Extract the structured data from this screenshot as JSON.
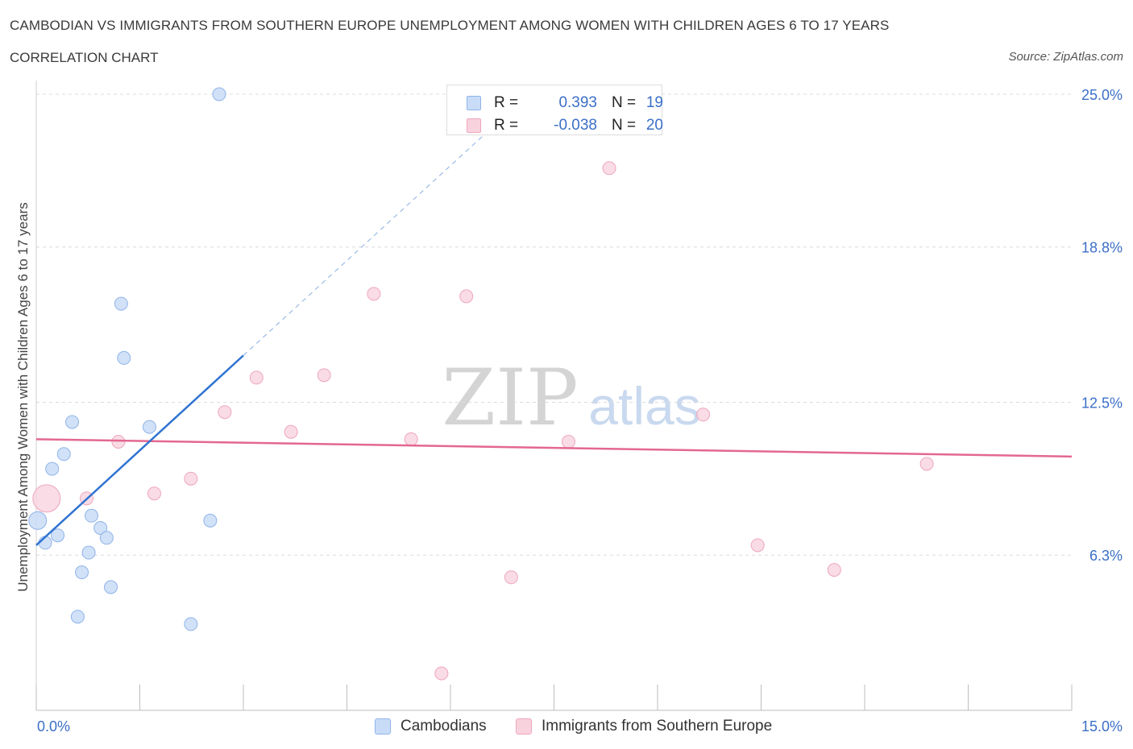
{
  "title": "CAMBODIAN VS IMMIGRANTS FROM SOUTHERN EUROPE UNEMPLOYMENT AMONG WOMEN WITH CHILDREN AGES 6 TO 17 YEARS",
  "subtitle": "CORRELATION CHART",
  "source": "Source: ZipAtlas.com",
  "watermark": {
    "zip": "ZIP",
    "atlas": "atlas"
  },
  "colors": {
    "blue_fill": "#c9dcf7",
    "blue_stroke": "#8fb4e8",
    "blue_line": "#2f73d1",
    "pink_fill": "#f8d3de",
    "pink_stroke": "#eea6bd",
    "pink_line": "#e3688f",
    "tick_label": "#3b6fc7",
    "grid": "#dcdcdc"
  },
  "legend_top": {
    "rows": [
      {
        "r_label": "R =",
        "r_value": "0.393",
        "n_label": "N =",
        "n_value": "19"
      },
      {
        "r_label": "R =",
        "r_value": "-0.038",
        "n_label": "N =",
        "n_value": "20"
      }
    ]
  },
  "legend_bottom": {
    "items": [
      {
        "label": "Cambodians"
      },
      {
        "label": "Immigrants from Southern Europe"
      }
    ]
  },
  "chart_data": {
    "type": "scatter",
    "title": "CAMBODIAN VS IMMIGRANTS FROM SOUTHERN EUROPE UNEMPLOYMENT AMONG WOMEN WITH CHILDREN AGES 6 TO 17 YEARS",
    "xlabel": "",
    "ylabel": "Unemployment Among Women with Children Ages 6 to 17 years",
    "xlim": [
      0,
      15
    ],
    "ylim": [
      0,
      25.5
    ],
    "x_tick_labels": [
      {
        "value": 0,
        "label": "0.0%"
      },
      {
        "value": 15,
        "label": "15.0%"
      }
    ],
    "y_tick_labels": [
      {
        "value": 6.3,
        "label": "6.3%"
      },
      {
        "value": 12.5,
        "label": "12.5%"
      },
      {
        "value": 18.8,
        "label": "18.8%"
      },
      {
        "value": 25.0,
        "label": "25.0%"
      }
    ],
    "grid": true,
    "series": [
      {
        "name": "Cambodians",
        "points": [
          {
            "x": 0.02,
            "y": 7.7,
            "size": "large"
          },
          {
            "x": 0.13,
            "y": 6.8
          },
          {
            "x": 0.31,
            "y": 7.1
          },
          {
            "x": 0.23,
            "y": 9.8
          },
          {
            "x": 0.4,
            "y": 10.4
          },
          {
            "x": 0.52,
            "y": 11.7
          },
          {
            "x": 0.8,
            "y": 7.9
          },
          {
            "x": 0.93,
            "y": 7.4
          },
          {
            "x": 1.02,
            "y": 7.0
          },
          {
            "x": 0.76,
            "y": 6.4
          },
          {
            "x": 0.66,
            "y": 5.6
          },
          {
            "x": 1.08,
            "y": 5.0
          },
          {
            "x": 0.6,
            "y": 3.8
          },
          {
            "x": 1.23,
            "y": 16.5
          },
          {
            "x": 1.27,
            "y": 14.3
          },
          {
            "x": 1.64,
            "y": 11.5
          },
          {
            "x": 2.52,
            "y": 7.7
          },
          {
            "x": 2.24,
            "y": 3.5
          },
          {
            "x": 2.65,
            "y": 25.0
          }
        ],
        "trend": {
          "x_start": 0,
          "y_start": 6.7,
          "x_solid_end": 3.0,
          "y_solid_end": 14.4,
          "x_dash_end": 6.7,
          "y_dash_end": 23.9
        }
      },
      {
        "name": "Immigrants from Southern Europe",
        "points": [
          {
            "x": 0.15,
            "y": 8.6,
            "size": "large"
          },
          {
            "x": 0.73,
            "y": 8.6
          },
          {
            "x": 1.19,
            "y": 10.9
          },
          {
            "x": 1.71,
            "y": 8.8
          },
          {
            "x": 2.24,
            "y": 9.4
          },
          {
            "x": 2.73,
            "y": 12.1
          },
          {
            "x": 3.19,
            "y": 13.5
          },
          {
            "x": 3.69,
            "y": 11.3
          },
          {
            "x": 4.17,
            "y": 13.6
          },
          {
            "x": 4.89,
            "y": 16.9
          },
          {
            "x": 5.43,
            "y": 11.0
          },
          {
            "x": 6.23,
            "y": 16.8
          },
          {
            "x": 5.87,
            "y": 1.5
          },
          {
            "x": 6.88,
            "y": 5.4
          },
          {
            "x": 7.71,
            "y": 10.9
          },
          {
            "x": 8.3,
            "y": 22.0
          },
          {
            "x": 9.66,
            "y": 12.0
          },
          {
            "x": 10.45,
            "y": 6.7
          },
          {
            "x": 11.56,
            "y": 5.7
          },
          {
            "x": 12.9,
            "y": 10.0
          }
        ],
        "trend": {
          "x_start": 0,
          "y_start": 11.0,
          "x_end": 15.0,
          "y_end": 10.3
        }
      }
    ]
  }
}
